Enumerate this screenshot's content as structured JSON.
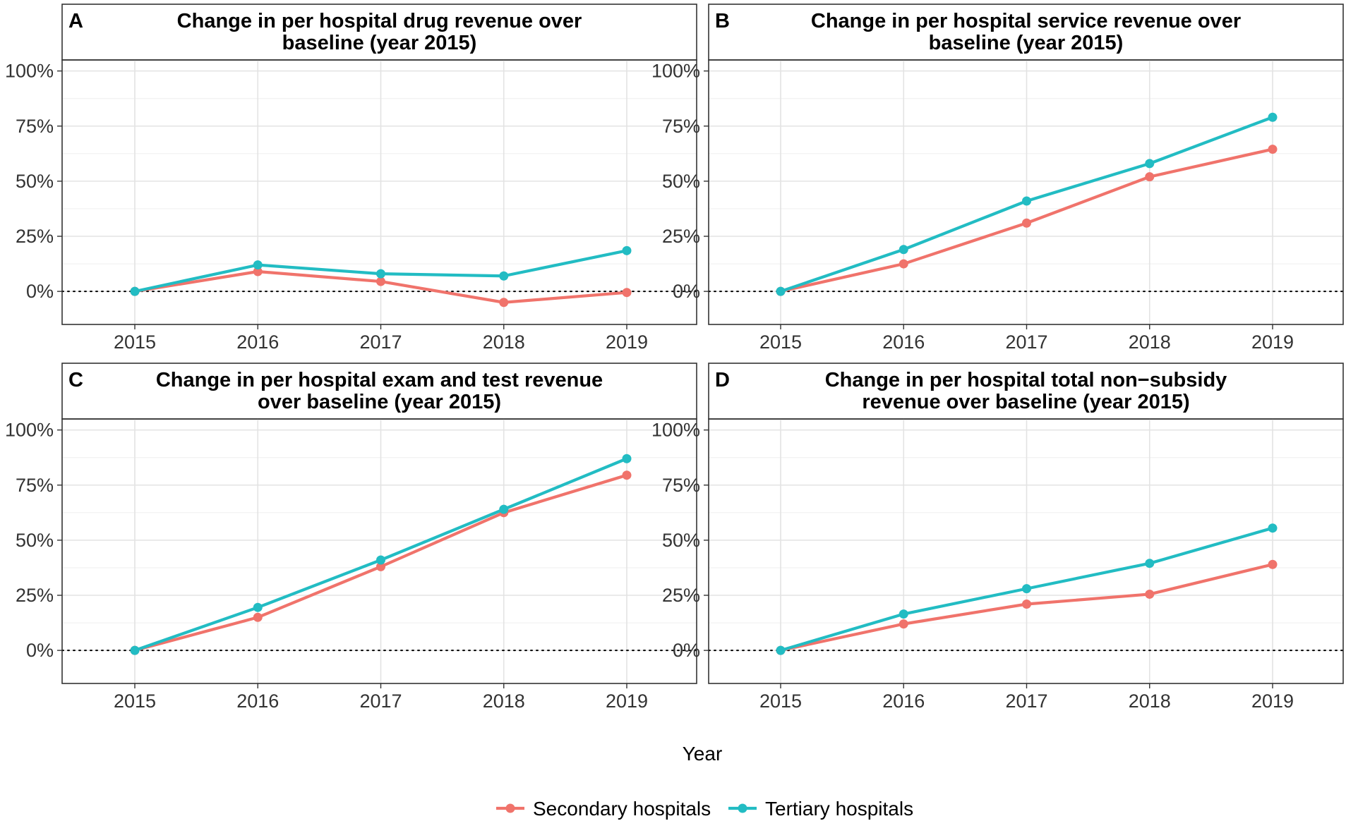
{
  "figure": {
    "xlabel": "Year",
    "legend": [
      {
        "name": "Secondary hospitals",
        "color": "#F0736B"
      },
      {
        "name": "Tertiary hospitals",
        "color": "#22BCC3"
      }
    ]
  },
  "chart_data": [
    {
      "type": "line",
      "panel": "A",
      "title": "Change in per hospital drug revenue over baseline (year 2015)",
      "title_lines": [
        "Change in per hospital drug revenue over",
        "baseline (year 2015)"
      ],
      "x": [
        "2015",
        "2016",
        "2017",
        "2018",
        "2019"
      ],
      "yticks": [
        "100%",
        "75%",
        "50%",
        "25%",
        "0%"
      ],
      "ylim": [
        -15,
        105
      ],
      "series": [
        {
          "name": "Secondary hospitals",
          "values": [
            0,
            9,
            4.5,
            -5,
            -0.5
          ]
        },
        {
          "name": "Tertiary hospitals",
          "values": [
            0,
            12,
            8,
            7,
            18.5
          ]
        }
      ]
    },
    {
      "type": "line",
      "panel": "B",
      "title": "Change in per hospital service revenue over baseline (year 2015)",
      "title_lines": [
        "Change in per hospital service revenue over",
        "baseline (year 2015)"
      ],
      "x": [
        "2015",
        "2016",
        "2017",
        "2018",
        "2019"
      ],
      "yticks": [
        "100%",
        "75%",
        "50%",
        "25%",
        "0%"
      ],
      "ylim": [
        -15,
        105
      ],
      "series": [
        {
          "name": "Secondary hospitals",
          "values": [
            0,
            12.5,
            31,
            52,
            64.5
          ]
        },
        {
          "name": "Tertiary hospitals",
          "values": [
            0,
            19,
            41,
            58,
            79
          ]
        }
      ]
    },
    {
      "type": "line",
      "panel": "C",
      "title": "Change in per hospital exam and test revenue over baseline (year 2015)",
      "title_lines": [
        "Change in per hospital exam and test revenue",
        "over baseline (year 2015)"
      ],
      "x": [
        "2015",
        "2016",
        "2017",
        "2018",
        "2019"
      ],
      "yticks": [
        "100%",
        "75%",
        "50%",
        "25%",
        "0%"
      ],
      "ylim": [
        -15,
        105
      ],
      "series": [
        {
          "name": "Secondary hospitals",
          "values": [
            0,
            15,
            38,
            62.5,
            79.5
          ]
        },
        {
          "name": "Tertiary hospitals",
          "values": [
            0,
            19.5,
            41,
            64,
            87
          ]
        }
      ]
    },
    {
      "type": "line",
      "panel": "D",
      "title": "Change in per hospital total non−subsidy revenue over baseline (year 2015)",
      "title_lines": [
        "Change in per hospital total non−subsidy",
        "revenue over baseline (year 2015)"
      ],
      "x": [
        "2015",
        "2016",
        "2017",
        "2018",
        "2019"
      ],
      "yticks": [
        "100%",
        "75%",
        "50%",
        "25%",
        "0%"
      ],
      "ylim": [
        -15,
        105
      ],
      "series": [
        {
          "name": "Secondary hospitals",
          "values": [
            0,
            12,
            21,
            25.5,
            39
          ]
        },
        {
          "name": "Tertiary hospitals",
          "values": [
            0,
            16.5,
            28,
            39.5,
            55.5
          ]
        }
      ]
    }
  ]
}
